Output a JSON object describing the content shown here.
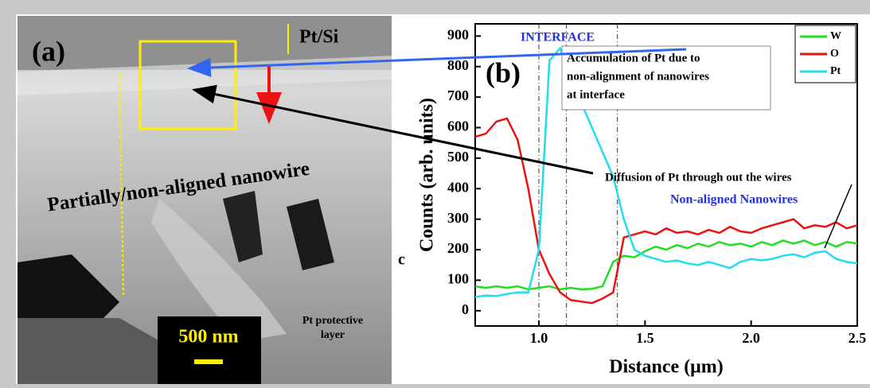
{
  "image_panel": {
    "label": "(a)",
    "layer": "Pt/Si",
    "region": "Partially/non-aligned nanowire",
    "scale_bar": "500 nm",
    "protective": [
      "Pt protective",
      "layer"
    ],
    "stray": "c"
  },
  "chart_data": {
    "type": "line",
    "panel_label": "(b)",
    "xlabel": "Distance (μm)",
    "ylabel": "Counts (arb. units)",
    "xlim": [
      0.7,
      2.5
    ],
    "ylim": [
      -50,
      940
    ],
    "xticks": [
      {
        "value": 1,
        "label": "1.0"
      },
      1.5,
      {
        "value": 2,
        "label": "2.0"
      },
      2.5
    ],
    "yticks": [
      0,
      100,
      200,
      300,
      400,
      500,
      600,
      700,
      800,
      900
    ],
    "vlines": [
      1.0,
      1.13,
      1.37
    ],
    "annotations": {
      "interface": "INTERFACE",
      "accumulation": [
        "Accumulation of Pt due to",
        "non-alignment of nanowires",
        "at interface"
      ],
      "diffusion": "Diffusion of Pt through out the wires",
      "nonaligned": "Non-aligned Nanowires"
    },
    "legend": "upper right",
    "x": [
      0.7,
      0.75,
      0.8,
      0.85,
      0.9,
      0.95,
      1.0,
      1.05,
      1.1,
      1.15,
      1.2,
      1.25,
      1.3,
      1.35,
      1.4,
      1.45,
      1.5,
      1.55,
      1.6,
      1.65,
      1.7,
      1.75,
      1.8,
      1.85,
      1.9,
      1.95,
      2.0,
      2.05,
      2.1,
      2.15,
      2.2,
      2.25,
      2.3,
      2.35,
      2.4,
      2.45,
      2.5
    ],
    "series": [
      {
        "name": "W",
        "color": "#22dd22",
        "values": [
          80,
          75,
          80,
          75,
          80,
          70,
          75,
          80,
          70,
          75,
          70,
          72,
          80,
          160,
          180,
          175,
          195,
          210,
          200,
          215,
          205,
          220,
          210,
          225,
          215,
          220,
          210,
          225,
          215,
          230,
          220,
          230,
          215,
          225,
          210,
          225,
          220
        ]
      },
      {
        "name": "O",
        "color": "#ee1111",
        "values": [
          570,
          580,
          620,
          630,
          560,
          400,
          200,
          120,
          60,
          35,
          30,
          25,
          40,
          60,
          240,
          250,
          260,
          250,
          270,
          255,
          260,
          250,
          265,
          255,
          275,
          260,
          255,
          270,
          280,
          290,
          300,
          270,
          280,
          275,
          290,
          270,
          280
        ]
      },
      {
        "name": "Pt",
        "color": "#22ddee",
        "values": [
          45,
          50,
          48,
          55,
          60,
          60,
          200,
          820,
          860,
          760,
          680,
          600,
          520,
          440,
          300,
          200,
          180,
          170,
          160,
          165,
          155,
          150,
          160,
          150,
          140,
          160,
          170,
          165,
          170,
          180,
          185,
          175,
          190,
          195,
          170,
          160,
          155
        ]
      }
    ]
  }
}
